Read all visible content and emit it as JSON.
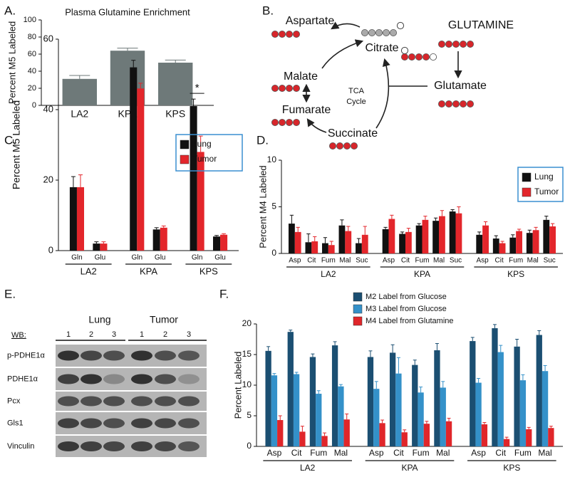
{
  "panel_labels": [
    "A.",
    "B.",
    "C.",
    "D.",
    "E.",
    "F."
  ],
  "chart_data": [
    {
      "type": "bar",
      "title": "Plasma Glutamine Enrichment",
      "y_label": "Percent M5 Labeled",
      "categories": [
        "LA2",
        "KPA",
        "KPS"
      ],
      "values": [
        31,
        64,
        50
      ],
      "errors": [
        4,
        3,
        3
      ],
      "color": "#6e7979",
      "ylim": [
        0,
        100
      ],
      "yticks": [
        0,
        20,
        40,
        60,
        80,
        100
      ]
    },
    {
      "type": "bar",
      "y_label": "Percent M5 Labeled",
      "categories": [
        "Gln",
        "Glu",
        "Gln",
        "Glu",
        "Gln",
        "Glu"
      ],
      "groups": [
        "LA2",
        "KPA",
        "KPS"
      ],
      "series": [
        {
          "name": "Lung",
          "color": "#111111",
          "values": [
            18,
            2,
            52,
            6,
            41,
            4
          ],
          "errors": [
            3,
            0.5,
            2,
            0.5,
            2,
            0.3
          ]
        },
        {
          "name": "Tumor",
          "color": "#e3262b",
          "values": [
            18,
            2,
            46,
            6.5,
            28,
            4.5
          ],
          "errors": [
            3.5,
            0.5,
            1.5,
            0.5,
            4.5,
            0.3
          ]
        }
      ],
      "ylim": [
        0,
        60
      ],
      "yticks": [
        0,
        20,
        40,
        60
      ],
      "legend": "top-right",
      "annotations": [
        "*"
      ]
    },
    {
      "type": "bar",
      "y_label": "Percent M4 Labeled",
      "categories": [
        "Asp",
        "Cit",
        "Fum",
        "Mal",
        "Suc",
        "Asp",
        "Cit",
        "Fum",
        "Mal",
        "Suc",
        "Asp",
        "Cit",
        "Fum",
        "Mal",
        "Suc"
      ],
      "groups": [
        "LA2",
        "KPA",
        "KPS"
      ],
      "series": [
        {
          "name": "Lung",
          "color": "#111111",
          "values": [
            3.2,
            1.2,
            1.1,
            3.0,
            1.1,
            2.6,
            2.1,
            3.0,
            3.5,
            4.5,
            2.0,
            1.6,
            1.7,
            2.2,
            3.6
          ],
          "errors": [
            0.9,
            0.9,
            0.6,
            0.6,
            0.5,
            0.2,
            0.2,
            0.2,
            0.3,
            0.2,
            0.3,
            0.3,
            0.3,
            0.3,
            0.4
          ]
        },
        {
          "name": "Tumor",
          "color": "#e3262b",
          "values": [
            2.3,
            1.3,
            0.9,
            2.4,
            2.0,
            3.7,
            2.3,
            3.6,
            4.0,
            4.3,
            3.0,
            1.1,
            2.4,
            2.5,
            2.9
          ],
          "errors": [
            0.5,
            0.5,
            0.4,
            0.5,
            0.9,
            0.4,
            0.4,
            0.4,
            0.6,
            0.7,
            0.4,
            0.2,
            0.2,
            0.3,
            0.3
          ]
        }
      ],
      "ylim": [
        0,
        10
      ],
      "yticks": [
        0,
        5,
        10
      ],
      "legend": "top-right"
    },
    {
      "type": "bar",
      "y_label": "Percent Labeled",
      "categories": [
        "Asp",
        "Cit",
        "Fum",
        "Mal",
        "Asp",
        "Cit",
        "Fum",
        "Mal",
        "Asp",
        "Cit",
        "Fum",
        "Mal"
      ],
      "groups": [
        "LA2",
        "KPA",
        "KPS"
      ],
      "series": [
        {
          "name": "M2 Label from Glucose",
          "color": "#1b4f72",
          "values": [
            15.6,
            18.7,
            14.6,
            16.5,
            14.6,
            15.3,
            13.3,
            15.7,
            17.2,
            19.3,
            16.3,
            18.2
          ],
          "errors": [
            0.7,
            0.3,
            0.5,
            0.6,
            1.0,
            1.3,
            0.8,
            1.1,
            0.6,
            0.6,
            1.2,
            0.7
          ]
        },
        {
          "name": "M3 Label from Glucose",
          "color": "#3491c9",
          "values": [
            11.6,
            11.8,
            8.6,
            9.8,
            9.4,
            11.9,
            8.8,
            9.6,
            10.4,
            15.4,
            10.8,
            12.3
          ],
          "errors": [
            0.3,
            0.3,
            0.5,
            0.3,
            1.2,
            2.6,
            0.9,
            1.0,
            0.7,
            1.1,
            0.9,
            0.9
          ]
        },
        {
          "name": "M4 Label from Glutamine",
          "color": "#e0262a",
          "values": [
            4.3,
            2.4,
            1.7,
            4.4,
            3.8,
            2.3,
            3.7,
            4.1,
            3.6,
            1.2,
            2.8,
            3.0
          ],
          "errors": [
            0.7,
            0.9,
            0.5,
            0.9,
            0.5,
            0.4,
            0.4,
            0.5,
            0.3,
            0.3,
            0.3,
            0.3
          ]
        }
      ],
      "ylim": [
        0,
        20
      ],
      "yticks": [
        0,
        5,
        10,
        15,
        20
      ],
      "legend": "top"
    }
  ],
  "diagram": {
    "nodes": [
      "Aspartate",
      "Citrate",
      "Malate",
      "Fumarate",
      "Succinate",
      "Glutamate",
      "GLUTAMINE"
    ],
    "center_label": [
      "TCA",
      "Cycle"
    ]
  },
  "blot": {
    "groups": [
      "Lung",
      "Tumor"
    ],
    "wb_label": "WB:",
    "lanes": [
      "1",
      "2",
      "3",
      "1",
      "2",
      "3"
    ],
    "rows": [
      "p-PDHE1α",
      "PDHE1α",
      "Pcx",
      "Gls1",
      "Vinculin"
    ]
  }
}
